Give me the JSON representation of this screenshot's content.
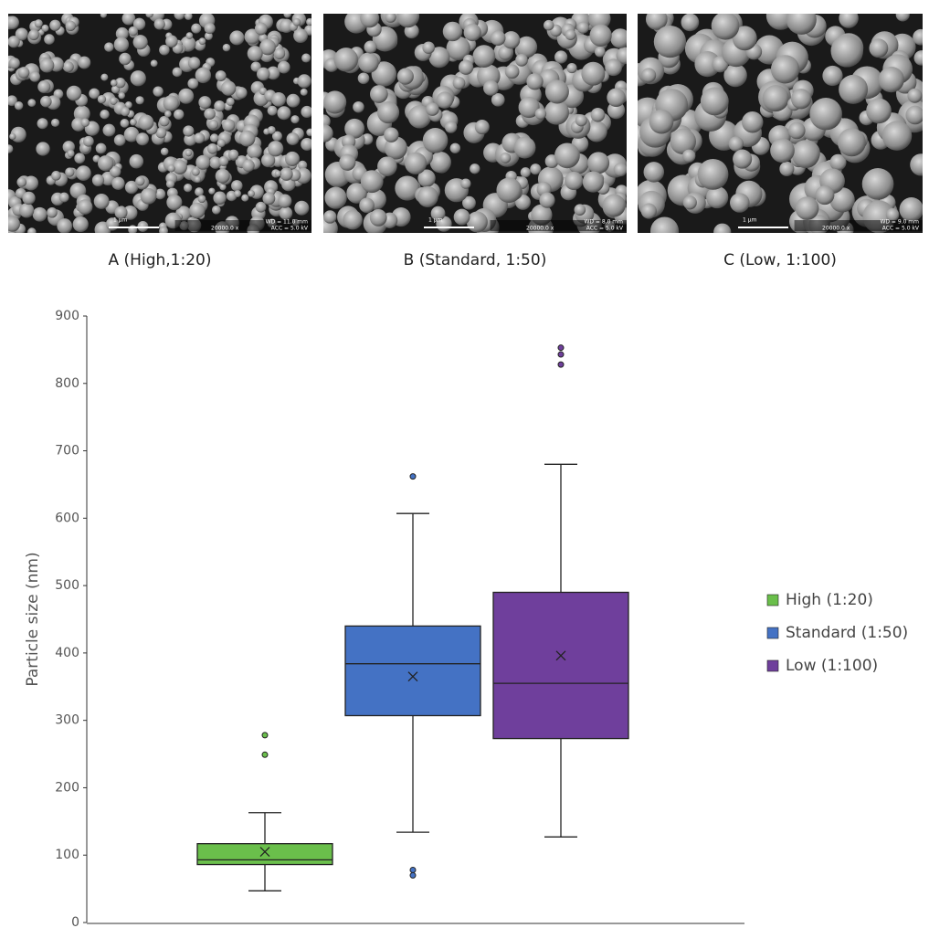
{
  "images": [
    {
      "caption": "A (High,1:20)",
      "scale": "1 µm",
      "magnification": "20000.0 x",
      "wd": "WD = 11.0 mm",
      "acc": "ACC = 5.0 kV"
    },
    {
      "caption": "B (Standard, 1:50)",
      "scale": "1 µm",
      "magnification": "20000.0 x",
      "wd": "WD = 8.0 mm",
      "acc": "ACC = 5.0 kV"
    },
    {
      "caption": "C (Low, 1:100)",
      "scale": "1 µm",
      "magnification": "20000.0 x",
      "wd": "WD = 9.0 mm",
      "acc": "ACC = 5.0 kV"
    }
  ],
  "chart_data": {
    "type": "box",
    "y_label": "Particle size (nm)",
    "ylim": [
      0,
      900
    ],
    "yticks": [
      0,
      100,
      200,
      300,
      400,
      500,
      600,
      700,
      800,
      900
    ],
    "legend": "right",
    "series": [
      {
        "name": "High (1:20)",
        "color": "#6abf4b",
        "whisker_low": 47,
        "q1": 86,
        "median": 93,
        "q3": 117,
        "whisker_high": 163,
        "mean": 105,
        "outliers": [
          278,
          249
        ]
      },
      {
        "name": "Standard (1:50)",
        "color": "#4472c4",
        "whisker_low": 134,
        "q1": 307,
        "median": 384,
        "q3": 440,
        "whisker_high": 607,
        "mean": 365,
        "outliers": [
          662,
          78,
          70
        ]
      },
      {
        "name": "Low (1:100)",
        "color": "#6f3f9c",
        "whisker_low": 127,
        "q1": 273,
        "median": 355,
        "q3": 490,
        "whisker_high": 680,
        "mean": 396,
        "outliers": [
          853,
          843,
          828
        ]
      }
    ]
  }
}
